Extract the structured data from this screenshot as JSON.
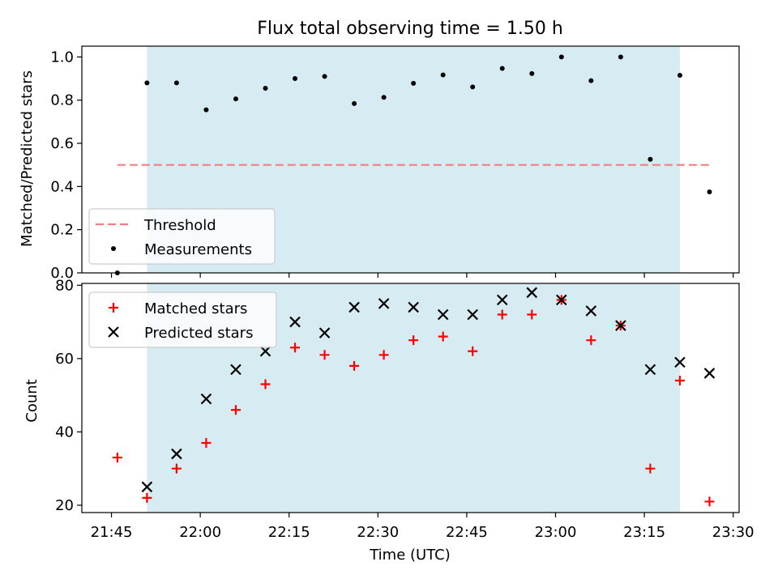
{
  "chart_data": [
    {
      "type": "scatter",
      "title": "Flux total observing time = 1.50 h",
      "ylabel": "Matched/Predicted stars",
      "xlim": [
        "21:40",
        "23:31"
      ],
      "ylim": [
        0,
        1.05
      ],
      "yticks": [
        0.0,
        0.2,
        0.4,
        0.6,
        0.8,
        1.0
      ],
      "ytick_labels": [
        "0.0",
        "0.2",
        "0.4",
        "0.6",
        "0.8",
        "1.0"
      ],
      "shaded_span": {
        "x": [
          "21:51",
          "23:21"
        ],
        "color": "#add8e6"
      },
      "threshold": {
        "name": "Threshold",
        "y": 0.5,
        "x": [
          "21:46",
          "23:26"
        ],
        "color": "#f08080",
        "style": "dashed"
      },
      "series": [
        {
          "name": "Measurements",
          "marker": "dot",
          "color": "#000000",
          "x": [
            "21:46",
            "21:51",
            "21:56",
            "22:01",
            "22:06",
            "22:11",
            "22:16",
            "22:21",
            "22:26",
            "22:31",
            "22:36",
            "22:41",
            "22:46",
            "22:51",
            "22:56",
            "23:01",
            "23:06",
            "23:11",
            "23:16",
            "23:21",
            "23:26"
          ],
          "values": [
            0.0,
            0.88,
            0.88,
            0.755,
            0.806,
            0.855,
            0.9,
            0.91,
            0.784,
            0.813,
            0.878,
            0.917,
            0.861,
            0.947,
            0.923,
            1.0,
            0.89,
            1.0,
            0.526,
            0.915,
            0.375
          ]
        }
      ],
      "legend": {
        "position": "lower-left",
        "entries": [
          "Threshold",
          "Measurements"
        ]
      },
      "grid": false
    },
    {
      "type": "scatter",
      "xlabel": "Time (UTC)",
      "ylabel": "Count",
      "xlim": [
        "21:40",
        "23:31"
      ],
      "ylim": [
        18,
        80.5
      ],
      "xticks": [
        "21:45",
        "22:00",
        "22:15",
        "22:30",
        "22:45",
        "23:00",
        "23:15",
        "23:30"
      ],
      "yticks": [
        20,
        40,
        60,
        80
      ],
      "ytick_labels": [
        "20",
        "40",
        "60",
        "80"
      ],
      "shaded_span": {
        "x": [
          "21:51",
          "23:21"
        ],
        "color": "#add8e6"
      },
      "series": [
        {
          "name": "Matched stars",
          "marker": "plus",
          "color": "#ff0000",
          "x": [
            "21:46",
            "21:51",
            "21:56",
            "22:01",
            "22:06",
            "22:11",
            "22:16",
            "22:21",
            "22:26",
            "22:31",
            "22:36",
            "22:41",
            "22:46",
            "22:51",
            "22:56",
            "23:01",
            "23:06",
            "23:11",
            "23:16",
            "23:21",
            "23:26"
          ],
          "values": [
            33,
            22,
            30,
            37,
            46,
            53,
            63,
            61,
            58,
            61,
            65,
            66,
            62,
            72,
            72,
            76,
            65,
            69,
            30,
            54,
            21
          ]
        },
        {
          "name": "Predicted stars",
          "marker": "x",
          "color": "#000000",
          "x": [
            "21:51",
            "21:56",
            "22:01",
            "22:06",
            "22:11",
            "22:16",
            "22:21",
            "22:26",
            "22:31",
            "22:36",
            "22:41",
            "22:46",
            "22:51",
            "22:56",
            "23:01",
            "23:06",
            "23:11",
            "23:16",
            "23:21",
            "23:26"
          ],
          "values": [
            25,
            34,
            49,
            57,
            62,
            70,
            67,
            74,
            75,
            74,
            72,
            72,
            76,
            78,
            76,
            73,
            69,
            57,
            59,
            56
          ]
        }
      ],
      "legend": {
        "position": "upper-left",
        "entries": [
          "Matched stars",
          "Predicted stars"
        ]
      },
      "grid": false
    }
  ]
}
